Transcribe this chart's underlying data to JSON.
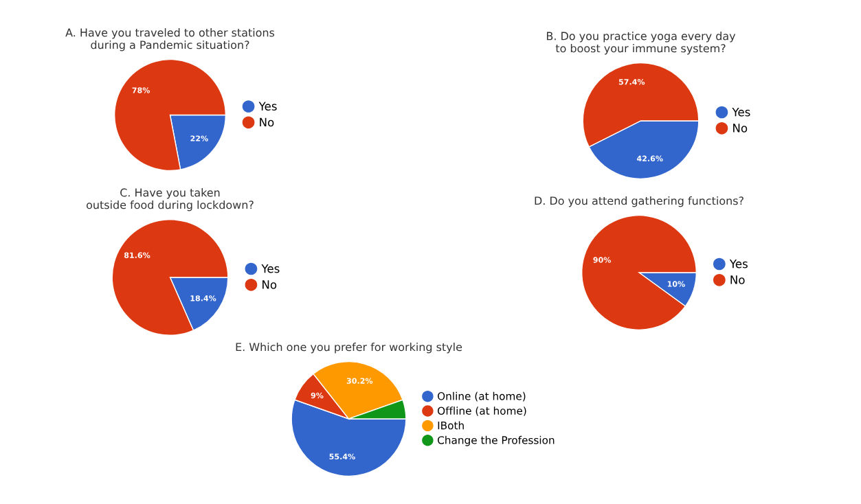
{
  "chart_data": [
    {
      "type": "pie",
      "title": "A. Have you traveled to other stations\nduring a Pandemic situation?",
      "categories": [
        "Yes",
        "No"
      ],
      "values": [
        22,
        78
      ],
      "value_labels": [
        "22%",
        "78%"
      ],
      "colors": [
        "#3366cc",
        "#dc3912"
      ],
      "legend": "right"
    },
    {
      "type": "pie",
      "title": "B. Do you practice yoga every day\nto boost your immune system?",
      "categories": [
        "Yes",
        "No"
      ],
      "values": [
        42.6,
        57.4
      ],
      "value_labels": [
        "42.6%",
        "57.4%"
      ],
      "colors": [
        "#3366cc",
        "#dc3912"
      ],
      "legend": "right"
    },
    {
      "type": "pie",
      "title": "C. Have you taken\noutside food during lockdown?",
      "categories": [
        "Yes",
        "No"
      ],
      "values": [
        18.4,
        81.6
      ],
      "value_labels": [
        "18.4%",
        "81.6%"
      ],
      "colors": [
        "#3366cc",
        "#dc3912"
      ],
      "legend": "right"
    },
    {
      "type": "pie",
      "title": "D. Do you attend gathering functions?",
      "categories": [
        "Yes",
        "No"
      ],
      "values": [
        10,
        90
      ],
      "value_labels": [
        "10%",
        "90%"
      ],
      "colors": [
        "#3366cc",
        "#dc3912"
      ],
      "legend": "right"
    },
    {
      "type": "pie",
      "title": "E. Which one you prefer for working style",
      "categories": [
        "Online (at home)",
        "Offline (at home)",
        "IBoth",
        "Change the Profession"
      ],
      "values": [
        55.4,
        9,
        30.2,
        5.4
      ],
      "value_labels": [
        "55.4%",
        "9%",
        "30.2%",
        null
      ],
      "colors": [
        "#3366cc",
        "#dc3912",
        "#ff9900",
        "#109618"
      ],
      "legend": "right"
    }
  ]
}
